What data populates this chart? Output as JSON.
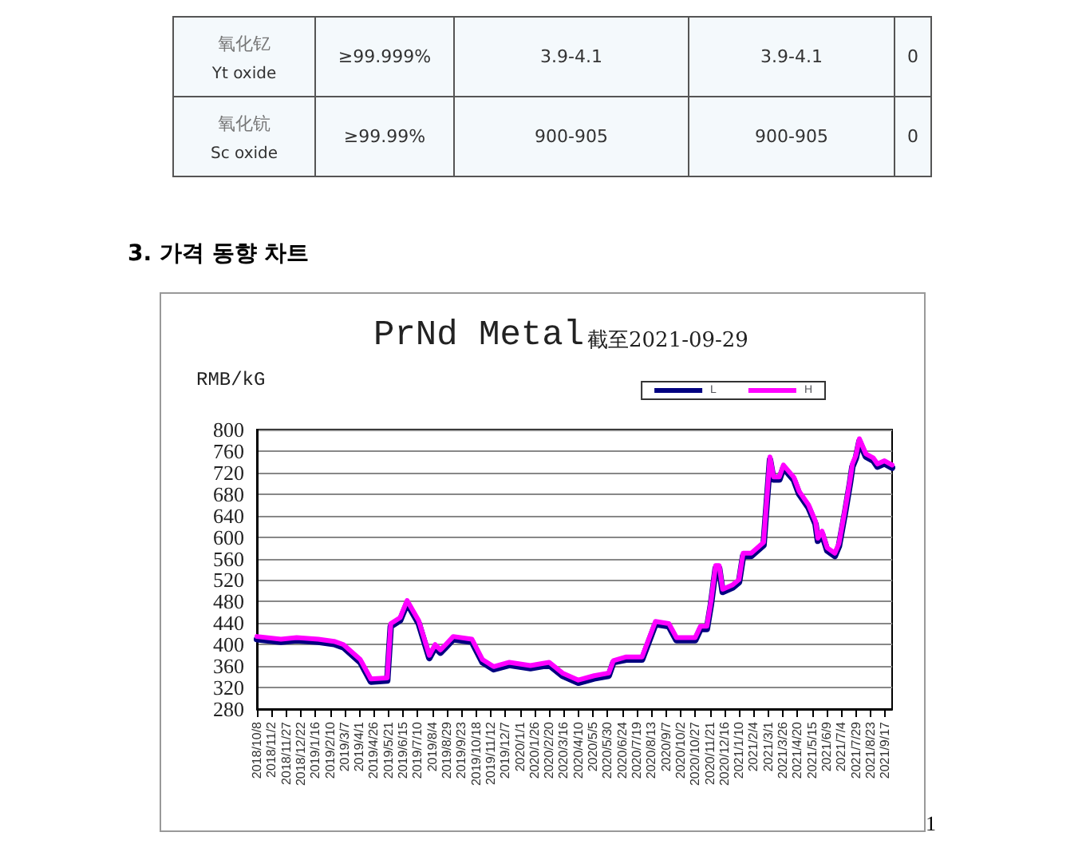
{
  "chart_data": [
    {
      "type": "other",
      "annotations": [
        "氧化钇",
        "Yt oxide",
        "≥99.999%",
        "3.9-4.1",
        "3.9-4.1",
        "0",
        "氧化钪",
        "Sc oxide",
        "≥99.99%",
        "900-905",
        "900-905",
        "0"
      ]
    },
    {
      "type": "line",
      "title": "PrNd Metal",
      "subtitle": "截至2021-09-29",
      "ylabel": "RMB/kG",
      "annotations": [
        "3. 가격 동향 차트",
        "1"
      ],
      "legend": "top right",
      "grid": "y",
      "marker": "none",
      "line_style": "solid",
      "xlim": [
        "2018-10-08",
        "2021-09-29"
      ],
      "ylim": [
        280,
        800
      ],
      "yticks": [
        280,
        320,
        360,
        400,
        440,
        480,
        520,
        560,
        600,
        640,
        680,
        720,
        760,
        800
      ],
      "xticks": [
        {
          "value": "2018-10-08",
          "label": "2018/10/8"
        },
        {
          "value": "2018-11-02",
          "label": "2018/11/2"
        },
        {
          "value": "2018-11-27",
          "label": "2018/11/27"
        },
        {
          "value": "2018-12-22",
          "label": "2018/12/22"
        },
        {
          "value": "2019-01-16",
          "label": "2019/1/16"
        },
        {
          "value": "2019-02-10",
          "label": "2019/2/10"
        },
        {
          "value": "2019-03-07",
          "label": "2019/3/7"
        },
        {
          "value": "2019-04-01",
          "label": "2019/4/1"
        },
        {
          "value": "2019-04-26",
          "label": "2019/4/26"
        },
        {
          "value": "2019-05-21",
          "label": "2019/5/21"
        },
        {
          "value": "2019-06-15",
          "label": "2019/6/15"
        },
        {
          "value": "2019-07-10",
          "label": "2019/7/10"
        },
        {
          "value": "2019-08-04",
          "label": "2019/8/4"
        },
        {
          "value": "2019-08-29",
          "label": "2019/8/29"
        },
        {
          "value": "2019-09-23",
          "label": "2019/9/23"
        },
        {
          "value": "2019-10-18",
          "label": "2019/10/18"
        },
        {
          "value": "2019-11-12",
          "label": "2019/11/12"
        },
        {
          "value": "2019-12-07",
          "label": "2019/12/7"
        },
        {
          "value": "2020-01-01",
          "label": "2020/1/1"
        },
        {
          "value": "2020-01-26",
          "label": "2020/1/26"
        },
        {
          "value": "2020-02-20",
          "label": "2020/2/20"
        },
        {
          "value": "2020-03-16",
          "label": "2020/3/16"
        },
        {
          "value": "2020-04-10",
          "label": "2020/4/10"
        },
        {
          "value": "2020-05-05",
          "label": "2020/5/5"
        },
        {
          "value": "2020-05-30",
          "label": "2020/5/30"
        },
        {
          "value": "2020-06-24",
          "label": "2020/6/24"
        },
        {
          "value": "2020-07-19",
          "label": "2020/7/19"
        },
        {
          "value": "2020-08-13",
          "label": "2020/8/13"
        },
        {
          "value": "2020-09-07",
          "label": "2020/9/7"
        },
        {
          "value": "2020-10-02",
          "label": "2020/10/2"
        },
        {
          "value": "2020-10-27",
          "label": "2020/10/27"
        },
        {
          "value": "2020-11-21",
          "label": "2020/11/21"
        },
        {
          "value": "2020-12-16",
          "label": "2020/12/16"
        },
        {
          "value": "2021-01-10",
          "label": "2021/1/10"
        },
        {
          "value": "2021-02-04",
          "label": "2021/2/4"
        },
        {
          "value": "2021-03-01",
          "label": "2021/3/1"
        },
        {
          "value": "2021-03-26",
          "label": "2021/3/26"
        },
        {
          "value": "2021-04-20",
          "label": "2021/4/20"
        },
        {
          "value": "2021-05-15",
          "label": "2021/5/15"
        },
        {
          "value": "2021-06-09",
          "label": "2021/6/9"
        },
        {
          "value": "2021-07-04",
          "label": "2021/7/4"
        },
        {
          "value": "2021-07-29",
          "label": "2021/7/29"
        },
        {
          "value": "2021-08-23",
          "label": "2021/8/23"
        },
        {
          "value": "2021-09-17",
          "label": "2021/9/17"
        }
      ],
      "x": [
        "2018-10-08",
        "2018-11-18",
        "2018-12-15",
        "2019-01-21",
        "2019-02-17",
        "2019-03-05",
        "2019-04-03",
        "2019-04-21",
        "2019-05-19",
        "2019-05-25",
        "2019-06-10",
        "2019-06-22",
        "2019-07-12",
        "2019-07-30",
        "2019-08-09",
        "2019-08-18",
        "2019-08-27",
        "2019-09-09",
        "2019-10-11",
        "2019-10-29",
        "2019-11-17",
        "2019-12-14",
        "2020-01-19",
        "2020-02-20",
        "2020-03-14",
        "2020-04-10",
        "2020-05-07",
        "2020-06-01",
        "2020-06-09",
        "2020-07-01",
        "2020-07-28",
        "2020-08-20",
        "2020-09-12",
        "2020-09-25",
        "2020-10-27",
        "2020-11-05",
        "2020-11-16",
        "2020-11-23",
        "2020-12-01",
        "2020-12-07",
        "2020-12-13",
        "2020-12-30",
        "2021-01-10",
        "2021-01-17",
        "2021-01-31",
        "2021-02-21",
        "2021-03-04",
        "2021-03-10",
        "2021-03-20",
        "2021-03-27",
        "2021-04-14",
        "2021-04-23",
        "2021-05-09",
        "2021-05-21",
        "2021-05-25",
        "2021-06-01",
        "2021-06-10",
        "2021-06-23",
        "2021-06-30",
        "2021-07-11",
        "2021-07-19",
        "2021-07-23",
        "2021-07-29",
        "2021-08-04",
        "2021-08-15",
        "2021-08-28",
        "2021-09-04",
        "2021-09-16",
        "2021-09-29"
      ],
      "series": [
        {
          "name": "L",
          "color": "#000080",
          "values": [
            410,
            405,
            408,
            405,
            401,
            395,
            367,
            331,
            333,
            434,
            445,
            477,
            439,
            375,
            395,
            385,
            395,
            410,
            405,
            367,
            354,
            362,
            356,
            362,
            342,
            329,
            337,
            342,
            367,
            372,
            372,
            438,
            434,
            408,
            408,
            429,
            429,
            475,
            542,
            542,
            498,
            506,
            516,
            565,
            565,
            585,
            744,
            707,
            707,
            729,
            706,
            680,
            655,
            624,
            593,
            606,
            575,
            565,
            583,
            649,
            701,
            731,
            747,
            778,
            750,
            742,
            731,
            737,
            729
          ]
        },
        {
          "name": "H",
          "color": "#ff00ff",
          "values": [
            415,
            410,
            413,
            410,
            406,
            400,
            372,
            336,
            338,
            439,
            450,
            482,
            444,
            380,
            400,
            390,
            400,
            415,
            410,
            372,
            359,
            367,
            361,
            367,
            347,
            334,
            342,
            347,
            370,
            377,
            377,
            443,
            439,
            413,
            413,
            434,
            434,
            480,
            547,
            547,
            503,
            511,
            521,
            570,
            570,
            590,
            749,
            712,
            712,
            734,
            711,
            685,
            660,
            629,
            598,
            611,
            580,
            570,
            588,
            654,
            706,
            736,
            752,
            783,
            755,
            747,
            736,
            742,
            734
          ]
        }
      ]
    }
  ]
}
